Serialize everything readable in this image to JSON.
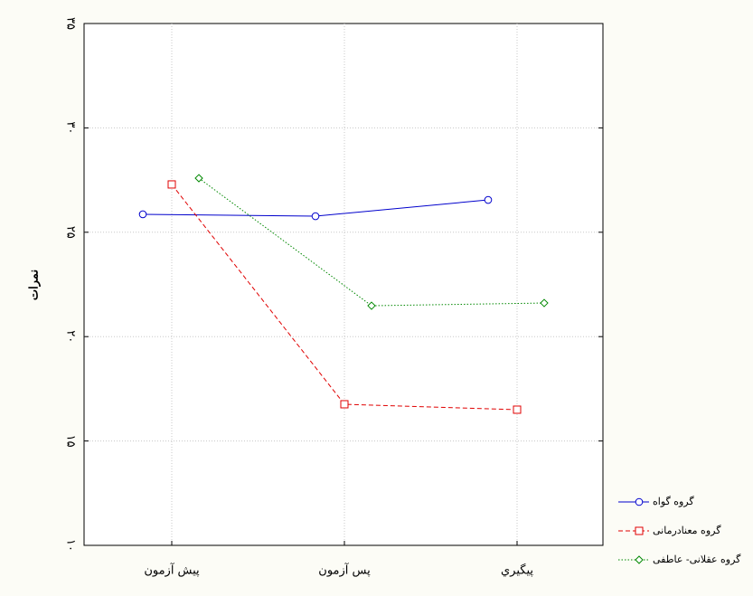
{
  "chart_data": {
    "type": "line",
    "y_label": "نمرات",
    "categories": [
      "پیش آزمون",
      "پس آزمون",
      "پیگیري"
    ],
    "ylim": [
      10,
      35
    ],
    "yticks": [
      {
        "value": 10,
        "label": "۱۰"
      },
      {
        "value": 15,
        "label": "۱۵"
      },
      {
        "value": 20,
        "label": "۲۰"
      },
      {
        "value": 25,
        "label": "۲۵"
      },
      {
        "value": 30,
        "label": "۳۰"
      },
      {
        "value": 35,
        "label": "۳۵"
      }
    ],
    "grid": true,
    "legend": "lower right",
    "series": [
      {
        "name": "گروه گواه",
        "color": "#0000cc",
        "dash": "solid",
        "marker": "circle",
        "values": [
          25.86,
          25.77,
          26.55
        ]
      },
      {
        "name": "گروه معنادرمانی",
        "color": "#e00000",
        "dash": "dashed",
        "marker": "square",
        "values": [
          27.29,
          16.76,
          16.5
        ]
      },
      {
        "name": "گروه عقلانی- عاطفی",
        "color": "#008800",
        "dash": "dotted",
        "marker": "diamond",
        "values": [
          27.59,
          21.48,
          21.61
        ]
      }
    ]
  }
}
